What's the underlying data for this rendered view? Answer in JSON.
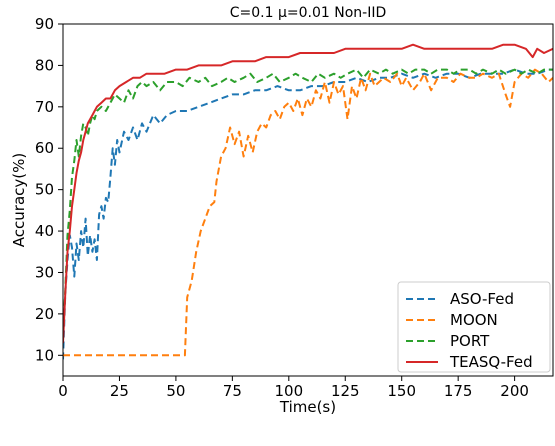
{
  "chart_data": {
    "type": "line",
    "title": "C=0.1 μ=0.01  Non-IID",
    "xlabel": "Time(s)",
    "ylabel": "Accuracy(%)",
    "xlim": [
      0,
      217
    ],
    "ylim": [
      5,
      90
    ],
    "xticks": [
      0,
      25,
      50,
      75,
      100,
      125,
      150,
      175,
      200
    ],
    "yticks": [
      10,
      20,
      30,
      40,
      50,
      60,
      70,
      80,
      90
    ],
    "grid": false,
    "legend_position": "lower-right",
    "series": [
      {
        "name": "ASO-Fed",
        "color": "#1f77b4",
        "dash": "dashed",
        "points": [
          [
            0,
            9
          ],
          [
            1,
            25
          ],
          [
            2,
            33
          ],
          [
            3,
            39
          ],
          [
            4,
            36
          ],
          [
            5,
            29
          ],
          [
            6,
            37
          ],
          [
            7,
            33
          ],
          [
            8,
            40
          ],
          [
            9,
            36
          ],
          [
            10,
            43
          ],
          [
            11,
            34
          ],
          [
            12,
            39
          ],
          [
            13,
            35
          ],
          [
            14,
            38
          ],
          [
            15,
            33
          ],
          [
            16,
            44
          ],
          [
            17,
            46
          ],
          [
            18,
            43
          ],
          [
            19,
            48
          ],
          [
            20,
            47
          ],
          [
            21,
            53
          ],
          [
            22,
            60
          ],
          [
            23,
            56
          ],
          [
            24,
            62
          ],
          [
            25,
            59
          ],
          [
            27,
            64
          ],
          [
            29,
            62
          ],
          [
            31,
            65
          ],
          [
            33,
            62
          ],
          [
            35,
            66
          ],
          [
            37,
            64
          ],
          [
            40,
            68
          ],
          [
            43,
            66
          ],
          [
            46,
            68
          ],
          [
            50,
            69
          ],
          [
            55,
            69
          ],
          [
            60,
            70
          ],
          [
            65,
            71
          ],
          [
            70,
            72
          ],
          [
            75,
            73
          ],
          [
            80,
            73
          ],
          [
            85,
            74
          ],
          [
            90,
            74
          ],
          [
            95,
            75
          ],
          [
            100,
            74
          ],
          [
            105,
            74
          ],
          [
            110,
            75
          ],
          [
            115,
            75
          ],
          [
            120,
            76
          ],
          [
            125,
            76
          ],
          [
            130,
            77
          ],
          [
            135,
            76
          ],
          [
            140,
            77
          ],
          [
            145,
            77
          ],
          [
            150,
            78
          ],
          [
            155,
            77
          ],
          [
            160,
            78
          ],
          [
            165,
            77
          ],
          [
            170,
            78
          ],
          [
            175,
            78
          ],
          [
            180,
            77
          ],
          [
            185,
            78
          ],
          [
            190,
            78
          ],
          [
            195,
            78
          ],
          [
            200,
            79
          ],
          [
            205,
            78
          ],
          [
            210,
            78
          ],
          [
            215,
            79
          ],
          [
            217,
            79
          ]
        ]
      },
      {
        "name": "MOON",
        "color": "#ff7f0e",
        "dash": "dashed",
        "points": [
          [
            0,
            10
          ],
          [
            10,
            10
          ],
          [
            20,
            10
          ],
          [
            30,
            10
          ],
          [
            40,
            10
          ],
          [
            50,
            10
          ],
          [
            54,
            10
          ],
          [
            55,
            24
          ],
          [
            57,
            28
          ],
          [
            59,
            35
          ],
          [
            61,
            40
          ],
          [
            63,
            43
          ],
          [
            65,
            46
          ],
          [
            67,
            47
          ],
          [
            68,
            52
          ],
          [
            70,
            58
          ],
          [
            72,
            60
          ],
          [
            74,
            65
          ],
          [
            76,
            61
          ],
          [
            78,
            64
          ],
          [
            80,
            58
          ],
          [
            82,
            63
          ],
          [
            84,
            59
          ],
          [
            86,
            64
          ],
          [
            88,
            66
          ],
          [
            90,
            65
          ],
          [
            92,
            68
          ],
          [
            94,
            69
          ],
          [
            96,
            67
          ],
          [
            98,
            70
          ],
          [
            100,
            71
          ],
          [
            102,
            69
          ],
          [
            104,
            72
          ],
          [
            106,
            68
          ],
          [
            108,
            72
          ],
          [
            110,
            70
          ],
          [
            112,
            74
          ],
          [
            114,
            72
          ],
          [
            116,
            76
          ],
          [
            118,
            71
          ],
          [
            120,
            76
          ],
          [
            122,
            73
          ],
          [
            124,
            75
          ],
          [
            126,
            67
          ],
          [
            128,
            75
          ],
          [
            130,
            72
          ],
          [
            132,
            77
          ],
          [
            134,
            74
          ],
          [
            136,
            78
          ],
          [
            138,
            75
          ],
          [
            140,
            76
          ],
          [
            142,
            77
          ],
          [
            145,
            76
          ],
          [
            148,
            78
          ],
          [
            150,
            75
          ],
          [
            152,
            77
          ],
          [
            155,
            74
          ],
          [
            158,
            76
          ],
          [
            160,
            78
          ],
          [
            163,
            74
          ],
          [
            166,
            77
          ],
          [
            170,
            77
          ],
          [
            173,
            76
          ],
          [
            176,
            78
          ],
          [
            180,
            77
          ],
          [
            183,
            77
          ],
          [
            186,
            78
          ],
          [
            190,
            77
          ],
          [
            193,
            78
          ],
          [
            196,
            73
          ],
          [
            198,
            70
          ],
          [
            200,
            76
          ],
          [
            203,
            78
          ],
          [
            206,
            77
          ],
          [
            209,
            79
          ],
          [
            212,
            78
          ],
          [
            215,
            76
          ],
          [
            217,
            77
          ]
        ]
      },
      {
        "name": "PORT",
        "color": "#2ca02c",
        "dash": "dashed",
        "points": [
          [
            0,
            14
          ],
          [
            1,
            26
          ],
          [
            2,
            39
          ],
          [
            3,
            45
          ],
          [
            4,
            53
          ],
          [
            5,
            57
          ],
          [
            6,
            62
          ],
          [
            7,
            58
          ],
          [
            8,
            63
          ],
          [
            9,
            66
          ],
          [
            10,
            65
          ],
          [
            11,
            63
          ],
          [
            12,
            66
          ],
          [
            13,
            68
          ],
          [
            14,
            67
          ],
          [
            15,
            69
          ],
          [
            17,
            70
          ],
          [
            19,
            69
          ],
          [
            21,
            71
          ],
          [
            23,
            73
          ],
          [
            25,
            72
          ],
          [
            27,
            71
          ],
          [
            29,
            74
          ],
          [
            31,
            72
          ],
          [
            33,
            75
          ],
          [
            35,
            76
          ],
          [
            37,
            75
          ],
          [
            40,
            76
          ],
          [
            43,
            74
          ],
          [
            46,
            76
          ],
          [
            50,
            76
          ],
          [
            53,
            75
          ],
          [
            56,
            77
          ],
          [
            60,
            76
          ],
          [
            63,
            77
          ],
          [
            66,
            75
          ],
          [
            70,
            76
          ],
          [
            73,
            77
          ],
          [
            76,
            76
          ],
          [
            80,
            77
          ],
          [
            83,
            78
          ],
          [
            86,
            76
          ],
          [
            90,
            77
          ],
          [
            93,
            78
          ],
          [
            96,
            76
          ],
          [
            100,
            77
          ],
          [
            103,
            78
          ],
          [
            106,
            77
          ],
          [
            110,
            76
          ],
          [
            113,
            78
          ],
          [
            116,
            77
          ],
          [
            120,
            78
          ],
          [
            123,
            77
          ],
          [
            126,
            78
          ],
          [
            130,
            79
          ],
          [
            133,
            77
          ],
          [
            136,
            79
          ],
          [
            140,
            78
          ],
          [
            143,
            79
          ],
          [
            146,
            78
          ],
          [
            150,
            79
          ],
          [
            153,
            78
          ],
          [
            156,
            79
          ],
          [
            160,
            79
          ],
          [
            163,
            78
          ],
          [
            166,
            79
          ],
          [
            170,
            79
          ],
          [
            173,
            78
          ],
          [
            176,
            79
          ],
          [
            180,
            79
          ],
          [
            183,
            78
          ],
          [
            186,
            79
          ],
          [
            190,
            78
          ],
          [
            193,
            79
          ],
          [
            196,
            78
          ],
          [
            200,
            79
          ],
          [
            203,
            78
          ],
          [
            206,
            79
          ],
          [
            210,
            78
          ],
          [
            213,
            79
          ],
          [
            217,
            79
          ]
        ]
      },
      {
        "name": "TEASQ-Fed",
        "color": "#d62728",
        "dash": "solid",
        "points": [
          [
            0,
            13
          ],
          [
            1,
            25
          ],
          [
            2,
            35
          ],
          [
            3,
            40
          ],
          [
            4,
            46
          ],
          [
            5,
            50
          ],
          [
            6,
            54
          ],
          [
            7,
            57
          ],
          [
            8,
            59
          ],
          [
            9,
            62
          ],
          [
            10,
            64
          ],
          [
            11,
            66
          ],
          [
            12,
            67
          ],
          [
            13,
            68
          ],
          [
            14,
            69
          ],
          [
            15,
            70
          ],
          [
            17,
            71
          ],
          [
            19,
            72
          ],
          [
            21,
            72
          ],
          [
            23,
            74
          ],
          [
            25,
            75
          ],
          [
            28,
            76
          ],
          [
            31,
            77
          ],
          [
            34,
            77
          ],
          [
            37,
            78
          ],
          [
            40,
            78
          ],
          [
            45,
            78
          ],
          [
            50,
            79
          ],
          [
            55,
            79
          ],
          [
            60,
            80
          ],
          [
            65,
            80
          ],
          [
            70,
            80
          ],
          [
            75,
            81
          ],
          [
            80,
            81
          ],
          [
            85,
            81
          ],
          [
            90,
            82
          ],
          [
            95,
            82
          ],
          [
            100,
            82
          ],
          [
            105,
            83
          ],
          [
            110,
            83
          ],
          [
            115,
            83
          ],
          [
            120,
            83
          ],
          [
            125,
            84
          ],
          [
            130,
            84
          ],
          [
            135,
            84
          ],
          [
            140,
            84
          ],
          [
            145,
            84
          ],
          [
            150,
            84
          ],
          [
            155,
            85
          ],
          [
            160,
            84
          ],
          [
            165,
            84
          ],
          [
            170,
            84
          ],
          [
            175,
            84
          ],
          [
            180,
            84
          ],
          [
            185,
            84
          ],
          [
            190,
            84
          ],
          [
            195,
            85
          ],
          [
            200,
            85
          ],
          [
            205,
            84
          ],
          [
            208,
            82
          ],
          [
            210,
            84
          ],
          [
            213,
            83
          ],
          [
            217,
            84
          ]
        ]
      }
    ]
  }
}
